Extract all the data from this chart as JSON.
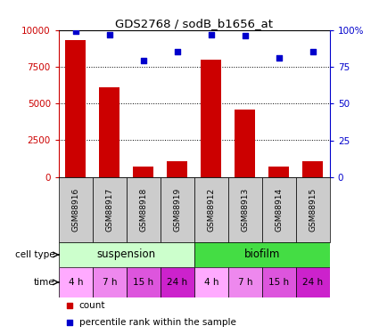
{
  "title": "GDS2768 / sodB_b1656_at",
  "samples": [
    "GSM88916",
    "GSM88917",
    "GSM88918",
    "GSM88919",
    "GSM88912",
    "GSM88913",
    "GSM88914",
    "GSM88915"
  ],
  "counts": [
    9300,
    6100,
    700,
    1100,
    8000,
    4600,
    700,
    1100
  ],
  "percentile_ranks": [
    99,
    97,
    79,
    85,
    97,
    96,
    81,
    85
  ],
  "cell_types": [
    {
      "label": "suspension",
      "start": 0,
      "end": 4,
      "color": "#ccffcc"
    },
    {
      "label": "biofilm",
      "start": 4,
      "end": 8,
      "color": "#44dd44"
    }
  ],
  "times": [
    "4 h",
    "7 h",
    "15 h",
    "24 h",
    "4 h",
    "7 h",
    "15 h",
    "24 h"
  ],
  "time_colors": [
    "#ffaaff",
    "#ee88ee",
    "#dd55dd",
    "#cc22cc",
    "#ffaaff",
    "#ee88ee",
    "#dd55dd",
    "#cc22cc"
  ],
  "bar_color": "#cc0000",
  "scatter_color": "#0000cc",
  "left_axis_color": "#cc0000",
  "right_axis_color": "#0000cc",
  "ylim_left": [
    0,
    10000
  ],
  "ylim_right": [
    0,
    100
  ],
  "yticks_left": [
    0,
    2500,
    5000,
    7500,
    10000
  ],
  "yticks_right": [
    0,
    25,
    50,
    75,
    100
  ],
  "ytick_labels_left": [
    "0",
    "2500",
    "5000",
    "7500",
    "10000"
  ],
  "ytick_labels_right": [
    "0",
    "25",
    "50",
    "75",
    "100%"
  ],
  "background_color": "#ffffff",
  "gsm_box_color": "#cccccc",
  "cell_type_label": "cell type",
  "time_label": "time"
}
